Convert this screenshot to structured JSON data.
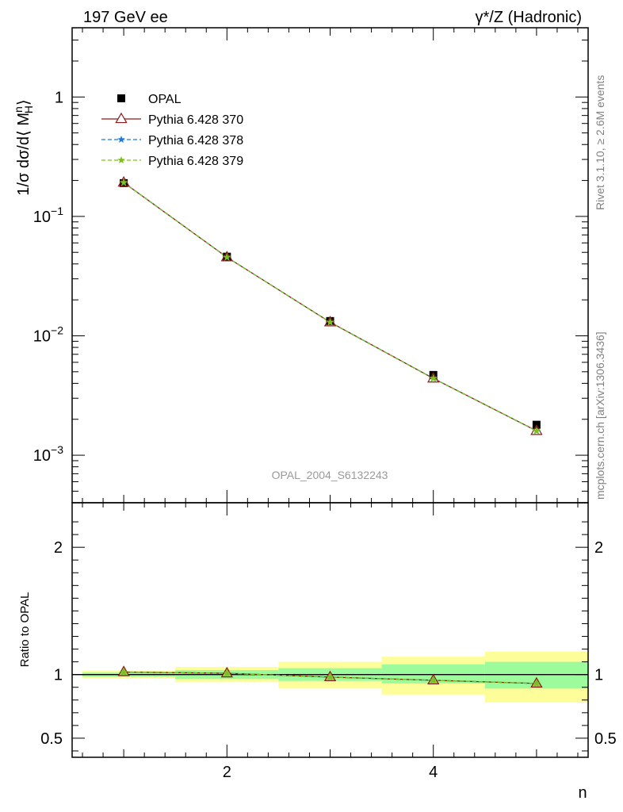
{
  "chart_data": [
    {
      "type": "scatter",
      "title_left": "197 GeV ee",
      "title_right": "γ*/Z (Hadronic)",
      "ylabel": "1/σ dσ/d⟨ M_H^n ⟩",
      "yscale": "log",
      "xlim": [
        0.5,
        5.5
      ],
      "ylim": [
        0.0004,
        3.8
      ],
      "yticks": [
        {
          "value": 0.001,
          "mant": "10",
          "exp": "−3"
        },
        {
          "value": 0.01,
          "mant": "10",
          "exp": "−2"
        },
        {
          "value": 0.1,
          "mant": "10",
          "exp": "−1"
        },
        {
          "value": 1,
          "mant": "1",
          "exp": ""
        }
      ],
      "watermark": "OPAL_2004_S6132243",
      "legend_position": "top-left",
      "x": [
        1,
        2,
        3,
        4,
        5
      ],
      "series": [
        {
          "name": "OPAL",
          "marker": "square",
          "color": "#000000",
          "values": [
            0.19,
            0.046,
            0.0133,
            0.0047,
            0.0018
          ]
        },
        {
          "name": "Pythia 6.428 370",
          "marker": "triangle",
          "color": "#8b1a1a",
          "line": "solid",
          "values": [
            0.192,
            0.0455,
            0.013,
            0.0044,
            0.0016
          ]
        },
        {
          "name": "Pythia 6.428 378",
          "marker": "star",
          "color": "#1e78d8",
          "line": "dashed",
          "values": [
            0.192,
            0.0455,
            0.013,
            0.0044,
            0.0016
          ]
        },
        {
          "name": "Pythia 6.428 379",
          "marker": "star",
          "color": "#7cc01e",
          "line": "dashed",
          "values": [
            0.192,
            0.0455,
            0.013,
            0.0044,
            0.0016
          ]
        }
      ]
    },
    {
      "type": "line",
      "ylabel": "Ratio to OPAL",
      "xlabel": "n",
      "xlim": [
        0.5,
        5.5
      ],
      "ylim": [
        0.35,
        2.35
      ],
      "xticks": [
        2,
        4
      ],
      "yticks": [
        0.5,
        1,
        2
      ],
      "bands": [
        {
          "xmin": 0.6,
          "xmax": 1.5,
          "inner": [
            0.985,
            1.015
          ],
          "outer": [
            0.97,
            1.03
          ]
        },
        {
          "xmin": 1.5,
          "xmax": 2.5,
          "inner": [
            0.965,
            1.035
          ],
          "outer": [
            0.94,
            1.06
          ]
        },
        {
          "xmin": 2.5,
          "xmax": 3.5,
          "inner": [
            0.95,
            1.05
          ],
          "outer": [
            0.89,
            1.1
          ]
        },
        {
          "xmin": 3.5,
          "xmax": 4.5,
          "inner": [
            0.93,
            1.08
          ],
          "outer": [
            0.84,
            1.14
          ]
        },
        {
          "xmin": 4.5,
          "xmax": 5.5,
          "inner": [
            0.89,
            1.1
          ],
          "outer": [
            0.78,
            1.18
          ]
        }
      ],
      "band_colors": {
        "inner": "#9cfc9c",
        "outer": "#fdfd9a"
      },
      "x": [
        1,
        2,
        3,
        4,
        5
      ],
      "series": [
        {
          "name": "Pythia 6.428 370",
          "color": "#8b1a1a",
          "values": [
            1.02,
            1.01,
            0.98,
            0.955,
            0.93
          ]
        },
        {
          "name": "Pythia 6.428 378",
          "color": "#1e78d8",
          "values": [
            1.02,
            1.01,
            0.98,
            0.955,
            0.93
          ]
        },
        {
          "name": "Pythia 6.428 379",
          "color": "#7cc01e",
          "values": [
            1.02,
            1.01,
            0.98,
            0.955,
            0.93
          ]
        }
      ]
    }
  ],
  "side_text": {
    "rivet": "Rivet 3.1.10, ≥ 2.6M events",
    "mcplots": "mcplots.cern.ch [arXiv:1306.3436]"
  }
}
